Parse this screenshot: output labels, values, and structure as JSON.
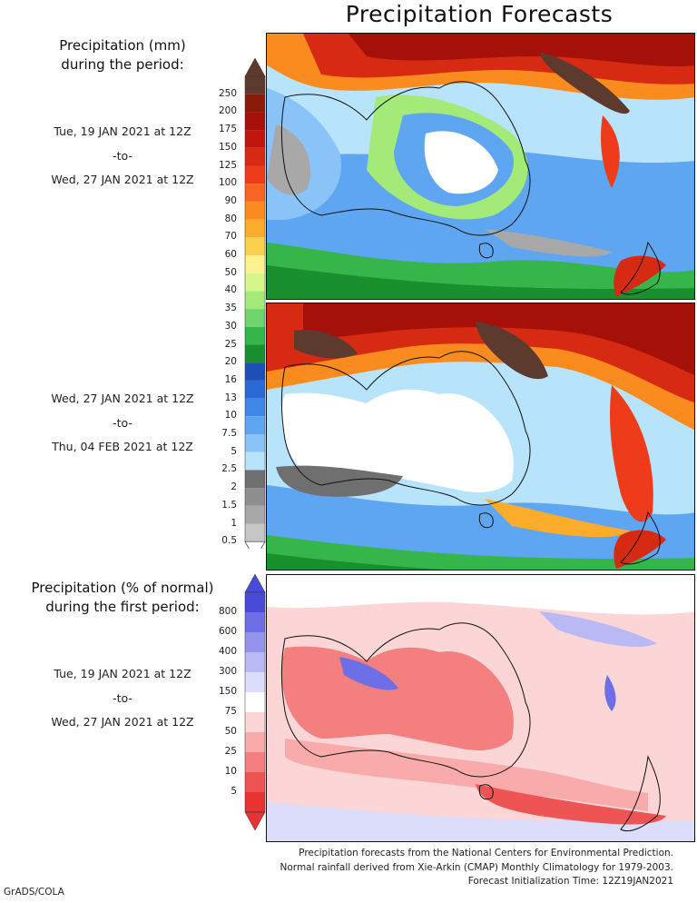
{
  "title": "Precipitation Forecasts",
  "legend_mm": {
    "heading_line1": "Precipitation (mm)",
    "heading_line2": "during the period:",
    "labels": [
      "250",
      "200",
      "175",
      "150",
      "125",
      "100",
      "90",
      "80",
      "70",
      "60",
      "50",
      "40",
      "35",
      "30",
      "25",
      "20",
      "16",
      "13",
      "10",
      "7.5",
      "5",
      "2.5",
      "2",
      "1.5",
      "1",
      "0.5"
    ],
    "colors": [
      "#5c3a2e",
      "#8b1a0a",
      "#a51008",
      "#c0150c",
      "#d62b12",
      "#ee3b1a",
      "#f86422",
      "#fa8b1e",
      "#fbac2b",
      "#fbd04f",
      "#fdf28f",
      "#d6f58a",
      "#a4ea78",
      "#6fd56a",
      "#36b54a",
      "#1a8f2e",
      "#1e4fb7",
      "#2a6ad6",
      "#3f88e8",
      "#5ea5f2",
      "#8ac3f7",
      "#b7e3fb",
      "#6f6f6f",
      "#8e8e8e",
      "#a8a8a8",
      "#c6c6c6"
    ],
    "top_cap_color": "#5c3a2e"
  },
  "periods": {
    "p1": {
      "from": "Tue, 19 JAN 2021 at 12Z",
      "sep": "-to-",
      "to": "Wed, 27 JAN 2021 at 12Z"
    },
    "p2": {
      "from": "Wed, 27 JAN 2021 at 12Z",
      "sep": "-to-",
      "to": "Thu, 04 FEB 2021 at 12Z"
    },
    "p3": {
      "from": "Tue, 19 JAN 2021 at 12Z",
      "sep": "-to-",
      "to": "Wed, 27 JAN 2021 at 12Z"
    }
  },
  "legend_pct": {
    "heading_line1": "Precipitation (% of normal)",
    "heading_line2": "during the first period:",
    "labels": [
      "800",
      "600",
      "400",
      "300",
      "150",
      "75",
      "50",
      "25",
      "10",
      "5"
    ],
    "colors": [
      "#4a4ad8",
      "#6e6ee6",
      "#9494ee",
      "#b9b9f5",
      "#dcdcfb",
      "#ffffff",
      "#fcd6d6",
      "#f9aaaa",
      "#f47f7f",
      "#ee5454",
      "#e93232"
    ],
    "top_cap_color": "#4a4ad8",
    "bottom_cap_color": "#e93232"
  },
  "footer": {
    "line1": "Precipitation forecasts from the National Centers for Environmental Prediction.",
    "line2": "Normal rainfall derived from Xie-Arkin (CMAP) Monthly Climatology for 1979-2003.",
    "line3": "Forecast Initialization Time: 12Z19JAN2021"
  },
  "credit": "GrADS/COLA"
}
